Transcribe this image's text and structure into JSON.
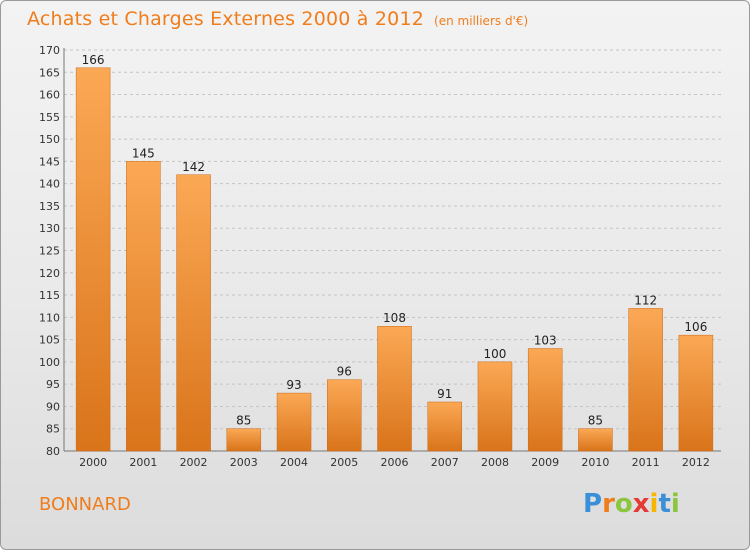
{
  "title": "Achats et Charges Externes 2000 à 2012",
  "unit_note": "(en milliers d'€)",
  "commune": "BONNARD",
  "logo": {
    "letters": [
      {
        "char": "P",
        "color": "#3a8fd8"
      },
      {
        "char": "r",
        "color": "#f07d1c"
      },
      {
        "char": "o",
        "color": "#8cc63f"
      },
      {
        "char": "x",
        "color": "#e53935"
      },
      {
        "char": "i",
        "color": "#f7b500"
      },
      {
        "char": "t",
        "color": "#3a8fd8"
      },
      {
        "char": "i",
        "color": "#8cc63f"
      }
    ]
  },
  "colors": {
    "accent": "#f07d1c",
    "bar_top": "#fba855",
    "bar_bottom": "#d9741a",
    "grid": "#c4c4c4"
  },
  "chart_data": {
    "type": "bar",
    "categories": [
      "2000",
      "2001",
      "2002",
      "2003",
      "2004",
      "2005",
      "2006",
      "2007",
      "2008",
      "2009",
      "2010",
      "2011",
      "2012"
    ],
    "values": [
      166,
      145,
      142,
      85,
      93,
      96,
      108,
      91,
      100,
      103,
      85,
      112,
      106
    ],
    "title": "Achats et Charges Externes 2000 à 2012",
    "xlabel": "",
    "ylabel": "",
    "ylim": [
      80,
      170
    ],
    "yticks": [
      80,
      85,
      90,
      95,
      100,
      105,
      110,
      115,
      120,
      125,
      130,
      135,
      140,
      145,
      150,
      155,
      160,
      165,
      170
    ],
    "grid": true
  }
}
